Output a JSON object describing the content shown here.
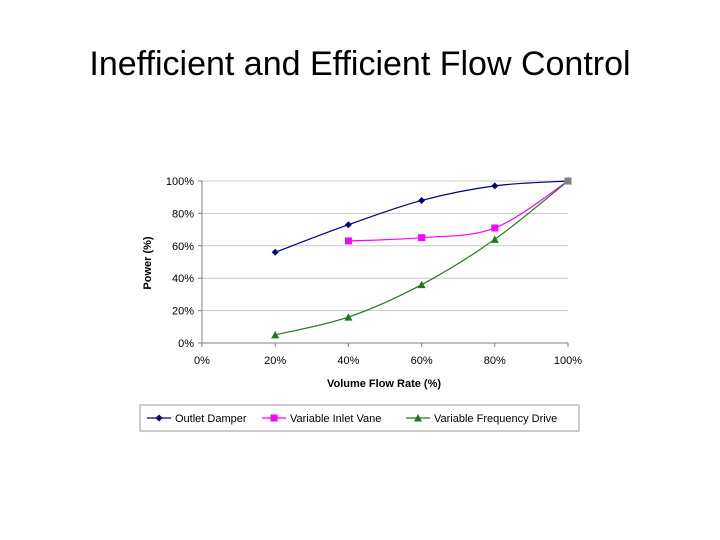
{
  "slide": {
    "title": "Inefficient and Efficient Flow Control"
  },
  "chart_data": {
    "type": "line",
    "title": "",
    "xlabel": "Volume Flow Rate (%)",
    "ylabel": "Power (%)",
    "xlim": [
      0,
      100
    ],
    "ylim": [
      0,
      100
    ],
    "xticks": [
      "0%",
      "20%",
      "40%",
      "60%",
      "80%",
      "100%"
    ],
    "yticks": [
      "0%",
      "20%",
      "40%",
      "60%",
      "80%",
      "100%"
    ],
    "grid": "horizontal",
    "legend": "bottom",
    "series": [
      {
        "name": "Outlet Damper",
        "marker": "diamond",
        "color": "#00007a",
        "x": [
          20,
          40,
          60,
          80,
          100
        ],
        "y": [
          56,
          73,
          88,
          97,
          100
        ]
      },
      {
        "name": "Variable Inlet Vane",
        "marker": "square",
        "color": "#ff00ff",
        "x": [
          40,
          60,
          80,
          100
        ],
        "y": [
          63,
          65,
          71,
          100
        ]
      },
      {
        "name": "Variable Frequency Drive",
        "marker": "triangle",
        "color": "#1f7a1f",
        "x": [
          20,
          40,
          60,
          80,
          100
        ],
        "y": [
          5,
          16,
          36,
          64,
          100
        ]
      }
    ]
  }
}
